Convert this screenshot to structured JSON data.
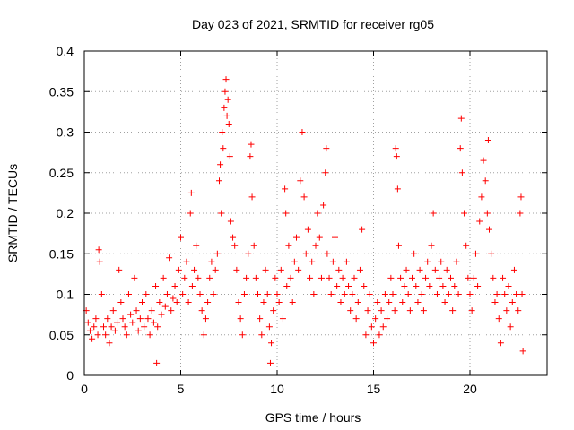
{
  "chart_data": {
    "type": "scatter",
    "title": "Day 023 of 2021, SRMTID for receiver rg05",
    "xlabel": "GPS time / hours",
    "ylabel": "SRMTID / TECUs",
    "xlim": [
      0,
      24
    ],
    "ylim": [
      0,
      0.4
    ],
    "xticks": [
      0,
      5,
      10,
      15,
      20
    ],
    "xtick_labels": [
      "0",
      "5",
      "10",
      "15",
      "20"
    ],
    "yticks": [
      0,
      0.05,
      0.1,
      0.15,
      0.2,
      0.25,
      0.3,
      0.35,
      0.4
    ],
    "ytick_labels": [
      "0",
      "0.05",
      "0.1",
      "0.15",
      "0.2",
      "0.25",
      "0.3",
      "0.35",
      "0.4"
    ],
    "grid": true,
    "marker": "+",
    "marker_color": "#ff0000",
    "series": [
      {
        "name": "SRMTID",
        "points": [
          [
            0.1,
            0.08
          ],
          [
            0.2,
            0.065
          ],
          [
            0.3,
            0.055
          ],
          [
            0.4,
            0.045
          ],
          [
            0.5,
            0.06
          ],
          [
            0.6,
            0.07
          ],
          [
            0.7,
            0.05
          ],
          [
            0.75,
            0.155
          ],
          [
            0.8,
            0.14
          ],
          [
            0.9,
            0.1
          ],
          [
            1.0,
            0.06
          ],
          [
            1.1,
            0.05
          ],
          [
            1.2,
            0.07
          ],
          [
            1.3,
            0.04
          ],
          [
            1.4,
            0.06
          ],
          [
            1.5,
            0.08
          ],
          [
            1.6,
            0.055
          ],
          [
            1.7,
            0.065
          ],
          [
            1.8,
            0.13
          ],
          [
            1.9,
            0.09
          ],
          [
            2.0,
            0.07
          ],
          [
            2.1,
            0.06
          ],
          [
            2.2,
            0.05
          ],
          [
            2.3,
            0.1
          ],
          [
            2.4,
            0.075
          ],
          [
            2.5,
            0.065
          ],
          [
            2.6,
            0.12
          ],
          [
            2.7,
            0.08
          ],
          [
            2.8,
            0.055
          ],
          [
            2.9,
            0.07
          ],
          [
            3.0,
            0.09
          ],
          [
            3.1,
            0.06
          ],
          [
            3.2,
            0.1
          ],
          [
            3.3,
            0.07
          ],
          [
            3.4,
            0.05
          ],
          [
            3.5,
            0.08
          ],
          [
            3.6,
            0.065
          ],
          [
            3.7,
            0.11
          ],
          [
            3.75,
            0.015
          ],
          [
            3.8,
            0.06
          ],
          [
            3.9,
            0.09
          ],
          [
            4.0,
            0.075
          ],
          [
            4.1,
            0.12
          ],
          [
            4.2,
            0.085
          ],
          [
            4.3,
            0.1
          ],
          [
            4.4,
            0.145
          ],
          [
            4.5,
            0.08
          ],
          [
            4.6,
            0.095
          ],
          [
            4.7,
            0.11
          ],
          [
            4.8,
            0.09
          ],
          [
            4.9,
            0.13
          ],
          [
            5.0,
            0.17
          ],
          [
            5.1,
            0.1
          ],
          [
            5.2,
            0.12
          ],
          [
            5.3,
            0.14
          ],
          [
            5.4,
            0.09
          ],
          [
            5.5,
            0.2
          ],
          [
            5.55,
            0.225
          ],
          [
            5.6,
            0.11
          ],
          [
            5.7,
            0.13
          ],
          [
            5.8,
            0.16
          ],
          [
            5.9,
            0.12
          ],
          [
            6.0,
            0.1
          ],
          [
            6.1,
            0.08
          ],
          [
            6.2,
            0.05
          ],
          [
            6.3,
            0.07
          ],
          [
            6.4,
            0.09
          ],
          [
            6.5,
            0.12
          ],
          [
            6.6,
            0.14
          ],
          [
            6.7,
            0.1
          ],
          [
            6.8,
            0.13
          ],
          [
            6.9,
            0.15
          ],
          [
            7.0,
            0.24
          ],
          [
            7.05,
            0.26
          ],
          [
            7.1,
            0.2
          ],
          [
            7.15,
            0.3
          ],
          [
            7.2,
            0.28
          ],
          [
            7.25,
            0.33
          ],
          [
            7.3,
            0.35
          ],
          [
            7.35,
            0.365
          ],
          [
            7.4,
            0.32
          ],
          [
            7.45,
            0.34
          ],
          [
            7.5,
            0.31
          ],
          [
            7.55,
            0.27
          ],
          [
            7.6,
            0.19
          ],
          [
            7.7,
            0.17
          ],
          [
            7.8,
            0.16
          ],
          [
            7.9,
            0.13
          ],
          [
            8.0,
            0.09
          ],
          [
            8.1,
            0.07
          ],
          [
            8.2,
            0.05
          ],
          [
            8.3,
            0.1
          ],
          [
            8.4,
            0.12
          ],
          [
            8.5,
            0.15
          ],
          [
            8.6,
            0.27
          ],
          [
            8.65,
            0.285
          ],
          [
            8.7,
            0.22
          ],
          [
            8.8,
            0.16
          ],
          [
            8.9,
            0.12
          ],
          [
            9.0,
            0.1
          ],
          [
            9.1,
            0.07
          ],
          [
            9.2,
            0.05
          ],
          [
            9.3,
            0.09
          ],
          [
            9.4,
            0.13
          ],
          [
            9.5,
            0.1
          ],
          [
            9.6,
            0.06
          ],
          [
            9.65,
            0.015
          ],
          [
            9.7,
            0.04
          ],
          [
            9.8,
            0.08
          ],
          [
            9.9,
            0.12
          ],
          [
            10.0,
            0.1
          ],
          [
            10.1,
            0.09
          ],
          [
            10.2,
            0.13
          ],
          [
            10.3,
            0.07
          ],
          [
            10.4,
            0.23
          ],
          [
            10.45,
            0.2
          ],
          [
            10.5,
            0.11
          ],
          [
            10.6,
            0.16
          ],
          [
            10.7,
            0.12
          ],
          [
            10.8,
            0.09
          ],
          [
            10.9,
            0.14
          ],
          [
            11.0,
            0.17
          ],
          [
            11.1,
            0.13
          ],
          [
            11.2,
            0.24
          ],
          [
            11.3,
            0.3
          ],
          [
            11.4,
            0.22
          ],
          [
            11.5,
            0.15
          ],
          [
            11.6,
            0.18
          ],
          [
            11.7,
            0.12
          ],
          [
            11.8,
            0.14
          ],
          [
            11.9,
            0.1
          ],
          [
            12.0,
            0.16
          ],
          [
            12.1,
            0.2
          ],
          [
            12.2,
            0.17
          ],
          [
            12.3,
            0.12
          ],
          [
            12.4,
            0.21
          ],
          [
            12.5,
            0.25
          ],
          [
            12.55,
            0.28
          ],
          [
            12.6,
            0.15
          ],
          [
            12.7,
            0.12
          ],
          [
            12.8,
            0.1
          ],
          [
            12.9,
            0.14
          ],
          [
            13.0,
            0.17
          ],
          [
            13.1,
            0.11
          ],
          [
            13.2,
            0.13
          ],
          [
            13.3,
            0.09
          ],
          [
            13.4,
            0.12
          ],
          [
            13.5,
            0.1
          ],
          [
            13.6,
            0.14
          ],
          [
            13.7,
            0.11
          ],
          [
            13.8,
            0.08
          ],
          [
            13.9,
            0.1
          ],
          [
            14.0,
            0.12
          ],
          [
            14.1,
            0.07
          ],
          [
            14.2,
            0.09
          ],
          [
            14.3,
            0.13
          ],
          [
            14.4,
            0.18
          ],
          [
            14.5,
            0.11
          ],
          [
            14.6,
            0.05
          ],
          [
            14.7,
            0.08
          ],
          [
            14.8,
            0.1
          ],
          [
            14.9,
            0.06
          ],
          [
            15.0,
            0.04
          ],
          [
            15.1,
            0.07
          ],
          [
            15.2,
            0.09
          ],
          [
            15.3,
            0.05
          ],
          [
            15.4,
            0.08
          ],
          [
            15.5,
            0.06
          ],
          [
            15.6,
            0.1
          ],
          [
            15.7,
            0.07
          ],
          [
            15.8,
            0.09
          ],
          [
            15.9,
            0.12
          ],
          [
            16.0,
            0.1
          ],
          [
            16.1,
            0.08
          ],
          [
            16.15,
            0.28
          ],
          [
            16.2,
            0.27
          ],
          [
            16.25,
            0.23
          ],
          [
            16.3,
            0.16
          ],
          [
            16.4,
            0.12
          ],
          [
            16.5,
            0.09
          ],
          [
            16.6,
            0.11
          ],
          [
            16.7,
            0.13
          ],
          [
            16.8,
            0.1
          ],
          [
            16.9,
            0.08
          ],
          [
            17.0,
            0.12
          ],
          [
            17.1,
            0.15
          ],
          [
            17.2,
            0.11
          ],
          [
            17.3,
            0.09
          ],
          [
            17.4,
            0.13
          ],
          [
            17.5,
            0.1
          ],
          [
            17.6,
            0.08
          ],
          [
            17.7,
            0.12
          ],
          [
            17.8,
            0.14
          ],
          [
            17.9,
            0.11
          ],
          [
            18.0,
            0.16
          ],
          [
            18.1,
            0.2
          ],
          [
            18.2,
            0.13
          ],
          [
            18.3,
            0.1
          ],
          [
            18.4,
            0.12
          ],
          [
            18.5,
            0.14
          ],
          [
            18.6,
            0.11
          ],
          [
            18.7,
            0.09
          ],
          [
            18.8,
            0.13
          ],
          [
            18.9,
            0.1
          ],
          [
            19.0,
            0.12
          ],
          [
            19.1,
            0.08
          ],
          [
            19.2,
            0.11
          ],
          [
            19.3,
            0.14
          ],
          [
            19.4,
            0.1
          ],
          [
            19.5,
            0.28
          ],
          [
            19.55,
            0.317
          ],
          [
            19.6,
            0.25
          ],
          [
            19.7,
            0.2
          ],
          [
            19.8,
            0.16
          ],
          [
            19.9,
            0.12
          ],
          [
            20.0,
            0.1
          ],
          [
            20.1,
            0.08
          ],
          [
            20.2,
            0.12
          ],
          [
            20.3,
            0.15
          ],
          [
            20.4,
            0.11
          ],
          [
            20.5,
            0.19
          ],
          [
            20.6,
            0.22
          ],
          [
            20.7,
            0.265
          ],
          [
            20.8,
            0.24
          ],
          [
            20.9,
            0.2
          ],
          [
            20.95,
            0.29
          ],
          [
            21.0,
            0.18
          ],
          [
            21.1,
            0.15
          ],
          [
            21.2,
            0.12
          ],
          [
            21.3,
            0.09
          ],
          [
            21.4,
            0.1
          ],
          [
            21.5,
            0.07
          ],
          [
            21.6,
            0.04
          ],
          [
            21.7,
            0.12
          ],
          [
            21.8,
            0.1
          ],
          [
            21.9,
            0.08
          ],
          [
            22.0,
            0.11
          ],
          [
            22.1,
            0.06
          ],
          [
            22.2,
            0.09
          ],
          [
            22.3,
            0.13
          ],
          [
            22.4,
            0.1
          ],
          [
            22.5,
            0.08
          ],
          [
            22.6,
            0.2
          ],
          [
            22.65,
            0.22
          ],
          [
            22.7,
            0.1
          ],
          [
            22.75,
            0.03
          ]
        ]
      }
    ]
  }
}
